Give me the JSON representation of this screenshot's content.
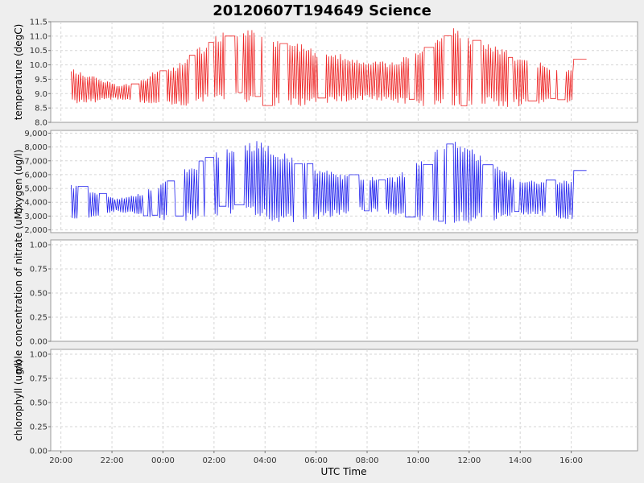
{
  "chart_data": {
    "type": "line",
    "title": "20120607T194649 Science",
    "xlabel": "UTC Time",
    "x_ticks": [
      "20:00",
      "22:00",
      "00:00",
      "02:00",
      "04:00",
      "06:00",
      "08:00",
      "10:00",
      "12:00",
      "14:00",
      "16:00"
    ],
    "x_range_hours": [
      -4.4,
      18.6
    ],
    "grid": true,
    "panels": [
      {
        "ylabel": "temperature (degC)",
        "color": "#ee2222",
        "ylim": [
          8.0,
          11.5
        ],
        "y_ticks": [
          "8.0",
          "8.5",
          "9.0",
          "9.5",
          "10.0",
          "10.5",
          "11.0",
          "11.5"
        ],
        "y_tick_values": [
          8.0,
          8.5,
          9.0,
          9.5,
          10.0,
          10.5,
          11.0,
          11.5
        ],
        "series": [
          {
            "x_hours": [
              -3.6,
              -2.6,
              -1.8,
              -1.0,
              -0.3,
              0.5,
              1.2,
              2.0,
              2.8,
              3.6,
              4.3,
              5.2,
              6.0,
              7.0,
              8.0,
              9.0,
              9.8,
              10.7,
              11.3,
              12.0,
              12.8,
              13.6,
              14.4,
              15.2,
              16.1,
              16.6
            ],
            "high": [
              9.9,
              9.6,
              9.3,
              9.4,
              9.8,
              10.0,
              10.5,
              11.0,
              11.3,
              11.2,
              11.0,
              10.8,
              10.5,
              10.4,
              10.2,
              10.1,
              10.4,
              11.0,
              11.4,
              11.1,
              10.7,
              10.5,
              10.2,
              10.0,
              9.9,
              10.2
            ],
            "low": [
              8.6,
              8.7,
              8.8,
              8.7,
              8.6,
              8.5,
              8.6,
              8.7,
              8.8,
              8.6,
              8.5,
              8.5,
              8.6,
              8.7,
              8.8,
              8.7,
              8.6,
              8.5,
              8.6,
              8.5,
              8.6,
              8.5,
              8.6,
              8.7,
              8.6,
              10.2
            ]
          }
        ]
      },
      {
        "ylabel": "oxygen (ug/l)",
        "color": "#2222ee",
        "ylim": [
          1800,
          9200
        ],
        "y_ticks": [
          "2,000",
          "3,000",
          "4,000",
          "5,000",
          "6,000",
          "7,000",
          "8,000",
          "9,000"
        ],
        "y_tick_values": [
          2000,
          3000,
          4000,
          5000,
          6000,
          7000,
          8000,
          9000
        ],
        "series": [
          {
            "x_hours": [
              -3.6,
              -2.6,
              -1.8,
              -1.0,
              -0.3,
              0.5,
              1.2,
              2.0,
              2.8,
              3.6,
              4.3,
              5.2,
              6.0,
              7.0,
              8.0,
              9.0,
              9.8,
              10.7,
              11.3,
              12.0,
              12.8,
              13.6,
              14.4,
              15.2,
              16.1,
              16.6
            ],
            "high": [
              5400,
              4800,
              4300,
              4600,
              5200,
              6300,
              6800,
              7600,
              8000,
              8600,
              8000,
              7300,
              6700,
              6100,
              5900,
              5800,
              6700,
              7800,
              9100,
              8000,
              7000,
              6000,
              5700,
              5600,
              5600,
              6300
            ],
            "low": [
              2600,
              3000,
              3300,
              3100,
              2800,
              2500,
              2700,
              3000,
              3200,
              2800,
              2600,
              2400,
              2700,
              3100,
              3300,
              3000,
              2600,
              2300,
              2500,
              2400,
              2600,
              2900,
              3100,
              2900,
              2600,
              6300
            ]
          }
        ]
      },
      {
        "ylabel": "mole concentration of nitrate (uM)",
        "color": "#2222ee",
        "ylim": [
          0,
          1.05
        ],
        "y_ticks": [
          "0.00",
          "0.25",
          "0.50",
          "0.75",
          "1.00"
        ],
        "y_tick_values": [
          0,
          0.25,
          0.5,
          0.75,
          1.0
        ],
        "series": []
      },
      {
        "ylabel": "chlorophyll (ug/l)",
        "color": "#2222ee",
        "ylim": [
          0,
          1.05
        ],
        "y_ticks": [
          "0.00",
          "0.25",
          "0.50",
          "0.75",
          "1.00"
        ],
        "y_tick_values": [
          0,
          0.25,
          0.5,
          0.75,
          1.0
        ],
        "series": []
      }
    ]
  }
}
